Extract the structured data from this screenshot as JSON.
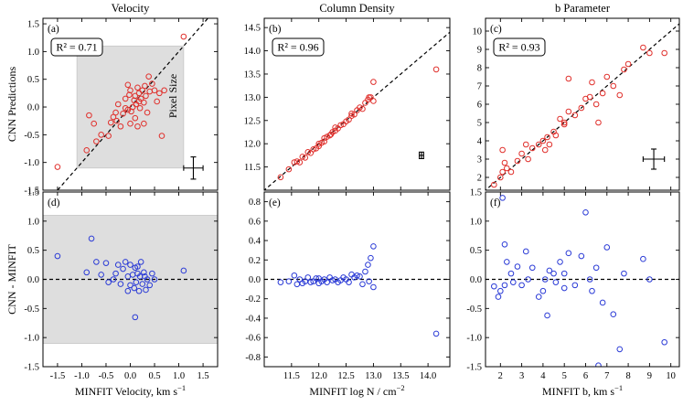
{
  "chart_data": [
    {
      "id": "a",
      "row": 0,
      "col": 0,
      "type": "scatter",
      "title": "Velocity",
      "panel_label": "(a)",
      "ylabel": "CNN Predictions",
      "xlabel": "",
      "xlim": [
        -1.8,
        1.8
      ],
      "ylim": [
        -1.5,
        1.6
      ],
      "xticks": [
        -1.5,
        -1.0,
        -0.5,
        0.0,
        0.5,
        1.0,
        1.5
      ],
      "yticks": [
        -1.5,
        -1.0,
        -0.5,
        0.0,
        0.5,
        1.0,
        1.5
      ],
      "ytick_labels": [
        "-1.5",
        "-1.0",
        "-0.5",
        "0.0",
        "0.5",
        "1.0",
        "1.5"
      ],
      "show_xticklabels": false,
      "r2_text": "R² = 0.71",
      "one_to_one": true,
      "zero_line": false,
      "shaded": {
        "x": [
          -1.1,
          1.1
        ],
        "y": [
          -1.1,
          1.1
        ]
      },
      "shaded_label": "Pixel Size",
      "errbar": {
        "x": 1.3,
        "y": -1.1,
        "xerr": 0.2,
        "yerr": 0.2
      },
      "color": "#e0302c",
      "points": [
        [
          -1.5,
          -1.08
        ],
        [
          -0.9,
          -0.78
        ],
        [
          -0.85,
          -0.15
        ],
        [
          -0.7,
          -0.62
        ],
        [
          -0.6,
          -0.5
        ],
        [
          -0.75,
          -0.3
        ],
        [
          -0.45,
          -0.52
        ],
        [
          -0.4,
          -0.28
        ],
        [
          -0.35,
          -0.18
        ],
        [
          -0.3,
          -0.1
        ],
        [
          -0.28,
          -0.25
        ],
        [
          -0.25,
          0.05
        ],
        [
          -0.2,
          -0.35
        ],
        [
          -0.15,
          -0.12
        ],
        [
          -0.1,
          -0.02
        ],
        [
          -0.1,
          0.15
        ],
        [
          -0.05,
          -0.05
        ],
        [
          -0.02,
          0.22
        ],
        [
          0.0,
          0.3
        ],
        [
          0.02,
          -0.08
        ],
        [
          0.05,
          0.0
        ],
        [
          0.08,
          0.12
        ],
        [
          0.1,
          0.2
        ],
        [
          0.1,
          -0.2
        ],
        [
          0.12,
          0.05
        ],
        [
          0.15,
          0.35
        ],
        [
          0.18,
          0.25
        ],
        [
          0.2,
          -0.02
        ],
        [
          0.22,
          0.15
        ],
        [
          0.25,
          0.3
        ],
        [
          0.28,
          0.08
        ],
        [
          0.3,
          0.38
        ],
        [
          0.32,
          0.2
        ],
        [
          0.35,
          -0.1
        ],
        [
          0.38,
          0.55
        ],
        [
          0.4,
          0.28
        ],
        [
          0.45,
          0.42
        ],
        [
          0.5,
          0.3
        ],
        [
          0.55,
          0.1
        ],
        [
          0.6,
          0.25
        ],
        [
          0.65,
          -0.52
        ],
        [
          0.7,
          0.3
        ],
        [
          0.28,
          -0.3
        ],
        [
          -0.05,
          0.4
        ],
        [
          0.15,
          -0.35
        ],
        [
          1.1,
          1.27
        ],
        [
          0.18,
          0.1
        ],
        [
          0.0,
          -0.3
        ]
      ]
    },
    {
      "id": "b",
      "row": 0,
      "col": 1,
      "type": "scatter",
      "title": "Column Density",
      "panel_label": "(b)",
      "ylabel": "",
      "xlabel": "",
      "xlim": [
        11.0,
        14.4
      ],
      "ylim": [
        11.0,
        14.7
      ],
      "xticks": [
        11.5,
        12.0,
        12.5,
        13.0,
        13.5,
        14.0
      ],
      "yticks": [
        11.5,
        12.0,
        12.5,
        13.0,
        13.5,
        14.0,
        14.5
      ],
      "ytick_labels": [
        "11.5",
        "12.0",
        "12.5",
        "13.0",
        "13.5",
        "14.0",
        "14.5"
      ],
      "show_xticklabels": false,
      "r2_text": "R² = 0.96",
      "one_to_one": true,
      "zero_line": false,
      "errbar": {
        "x": 13.88,
        "y": 11.75,
        "xerr": 0.04,
        "yerr": 0.07
      },
      "color": "#e0302c",
      "points": [
        [
          11.3,
          11.28
        ],
        [
          11.45,
          11.45
        ],
        [
          11.55,
          11.6
        ],
        [
          11.6,
          11.62
        ],
        [
          11.7,
          11.72
        ],
        [
          11.75,
          11.7
        ],
        [
          11.8,
          11.82
        ],
        [
          11.85,
          11.8
        ],
        [
          11.9,
          11.88
        ],
        [
          11.95,
          11.9
        ],
        [
          12.0,
          12.0
        ],
        [
          12.05,
          12.02
        ],
        [
          12.1,
          12.05
        ],
        [
          12.1,
          12.12
        ],
        [
          12.15,
          12.15
        ],
        [
          12.2,
          12.18
        ],
        [
          12.22,
          12.2
        ],
        [
          12.25,
          12.25
        ],
        [
          12.3,
          12.28
        ],
        [
          12.35,
          12.33
        ],
        [
          12.4,
          12.4
        ],
        [
          12.45,
          12.42
        ],
        [
          12.5,
          12.48
        ],
        [
          12.55,
          12.52
        ],
        [
          12.6,
          12.6
        ],
        [
          12.65,
          12.63
        ],
        [
          12.7,
          12.72
        ],
        [
          12.75,
          12.78
        ],
        [
          12.8,
          12.75
        ],
        [
          12.85,
          12.88
        ],
        [
          12.9,
          12.95
        ],
        [
          12.95,
          13.0
        ],
        [
          13.0,
          12.92
        ],
        [
          13.0,
          13.33
        ],
        [
          12.92,
          13.0
        ],
        [
          14.15,
          13.6
        ],
        [
          11.65,
          11.6
        ],
        [
          12.0,
          11.95
        ],
        [
          12.3,
          12.35
        ],
        [
          12.6,
          12.65
        ]
      ]
    },
    {
      "id": "c",
      "row": 0,
      "col": 2,
      "type": "scatter",
      "title": "b Parameter",
      "panel_label": "(c)",
      "ylabel": "",
      "xlabel": "",
      "xlim": [
        1.3,
        10.4
      ],
      "ylim": [
        1.3,
        10.7
      ],
      "xticks": [
        2,
        3,
        4,
        5,
        6,
        7,
        8,
        9,
        10
      ],
      "yticks": [
        2,
        3,
        4,
        5,
        6,
        7,
        8,
        9,
        10
      ],
      "ytick_labels": [
        "2",
        "3",
        "4",
        "5",
        "6",
        "7",
        "8",
        "9",
        "10"
      ],
      "show_xticklabels": false,
      "r2_text": "R² = 0.93",
      "one_to_one": true,
      "zero_line": false,
      "errbar": {
        "x": 9.2,
        "y": 3.0,
        "xerr": 0.5,
        "yerr": 0.55
      },
      "color": "#e0302c",
      "points": [
        [
          1.7,
          1.6
        ],
        [
          2.0,
          2.0
        ],
        [
          2.1,
          2.3
        ],
        [
          2.2,
          2.8
        ],
        [
          2.1,
          3.5
        ],
        [
          2.3,
          2.5
        ],
        [
          2.5,
          2.3
        ],
        [
          2.8,
          2.9
        ],
        [
          3.0,
          3.3
        ],
        [
          3.2,
          3.8
        ],
        [
          3.5,
          3.6
        ],
        [
          3.8,
          3.8
        ],
        [
          4.0,
          4.0
        ],
        [
          4.2,
          4.2
        ],
        [
          4.3,
          3.8
        ],
        [
          4.5,
          4.5
        ],
        [
          4.6,
          4.3
        ],
        [
          4.8,
          5.2
        ],
        [
          5.0,
          5.0
        ],
        [
          5.2,
          5.6
        ],
        [
          5.2,
          7.4
        ],
        [
          5.5,
          5.4
        ],
        [
          5.8,
          5.8
        ],
        [
          6.0,
          6.3
        ],
        [
          6.2,
          6.4
        ],
        [
          6.3,
          7.2
        ],
        [
          6.5,
          6.0
        ],
        [
          6.6,
          5.0
        ],
        [
          6.8,
          6.6
        ],
        [
          7.0,
          7.5
        ],
        [
          7.3,
          7.0
        ],
        [
          7.6,
          6.5
        ],
        [
          7.8,
          7.9
        ],
        [
          8.0,
          8.2
        ],
        [
          8.7,
          9.1
        ],
        [
          9.0,
          8.8
        ],
        [
          9.7,
          8.8
        ],
        [
          4.1,
          3.5
        ],
        [
          5.0,
          4.9
        ],
        [
          3.3,
          3.0
        ]
      ]
    },
    {
      "id": "d",
      "row": 1,
      "col": 0,
      "type": "scatter",
      "title": "",
      "panel_label": "(d)",
      "ylabel": "CNN - MINFIT",
      "xlabel": "MINFIT Velocity, km s",
      "xlabel_sup": "−1",
      "xlim": [
        -1.8,
        1.8
      ],
      "ylim": [
        -1.5,
        1.5
      ],
      "xticks": [
        -1.5,
        -1.0,
        -0.5,
        0.0,
        0.5,
        1.0,
        1.5
      ],
      "xtick_labels": [
        "-1.5",
        "-1.0",
        "-0.5",
        "0.0",
        "0.5",
        "1.0",
        "1.5"
      ],
      "yticks": [
        -1.5,
        -1.0,
        -0.5,
        0.0,
        0.5,
        1.0,
        1.5
      ],
      "ytick_labels": [
        "-1.5",
        "-1.0",
        "-0.5",
        "0.0",
        "0.5",
        "1.0",
        "1.5"
      ],
      "show_xticklabels": true,
      "r2_text": "",
      "one_to_one": false,
      "zero_line": true,
      "shaded": {
        "x": [
          -1.8,
          1.8
        ],
        "y": [
          -1.1,
          1.1
        ]
      },
      "color": "#2b3bd6",
      "points": [
        [
          -1.5,
          0.4
        ],
        [
          -0.9,
          0.12
        ],
        [
          -0.8,
          0.7
        ],
        [
          -0.7,
          0.3
        ],
        [
          -0.6,
          0.08
        ],
        [
          -0.5,
          0.28
        ],
        [
          -0.45,
          -0.05
        ],
        [
          -0.3,
          0.1
        ],
        [
          -0.25,
          0.25
        ],
        [
          -0.2,
          -0.08
        ],
        [
          -0.15,
          0.18
        ],
        [
          -0.1,
          0.3
        ],
        [
          -0.05,
          0.05
        ],
        [
          0.0,
          -0.1
        ],
        [
          0.0,
          0.25
        ],
        [
          0.05,
          0.08
        ],
        [
          0.08,
          -0.15
        ],
        [
          0.1,
          0.2
        ],
        [
          0.12,
          -0.05
        ],
        [
          0.15,
          0.1
        ],
        [
          0.18,
          -0.2
        ],
        [
          0.2,
          0.05
        ],
        [
          0.22,
          0.3
        ],
        [
          0.25,
          -0.08
        ],
        [
          0.28,
          0.12
        ],
        [
          0.3,
          0.05
        ],
        [
          0.32,
          -0.18
        ],
        [
          0.1,
          -0.65
        ],
        [
          0.35,
          0.0
        ],
        [
          0.4,
          -0.1
        ],
        [
          0.45,
          0.1
        ],
        [
          0.5,
          0.0
        ],
        [
          1.1,
          0.15
        ],
        [
          -0.35,
          0.0
        ],
        [
          0.15,
          0.22
        ],
        [
          -0.05,
          -0.2
        ]
      ]
    },
    {
      "id": "e",
      "row": 1,
      "col": 1,
      "type": "scatter",
      "title": "",
      "panel_label": "(e)",
      "ylabel": "",
      "xlabel": "MINFIT log N / cm",
      "xlabel_sup": "−2",
      "xlim": [
        11.0,
        14.4
      ],
      "ylim": [
        -0.9,
        0.9
      ],
      "xticks": [
        11.5,
        12.0,
        12.5,
        13.0,
        13.5,
        14.0
      ],
      "xtick_labels": [
        "11.5",
        "12.0",
        "12.5",
        "13.0",
        "13.5",
        "14.0"
      ],
      "yticks": [
        -0.8,
        -0.6,
        -0.4,
        -0.2,
        0.0,
        0.2,
        0.4,
        0.6,
        0.8
      ],
      "ytick_labels": [
        "-0.8",
        "-0.6",
        "-0.4",
        "-0.2",
        "0.0",
        "0.2",
        "0.4",
        "0.6",
        "0.8"
      ],
      "show_xticklabels": true,
      "r2_text": "",
      "one_to_one": false,
      "zero_line": true,
      "color": "#2b3bd6",
      "points": [
        [
          11.3,
          -0.03
        ],
        [
          11.45,
          -0.02
        ],
        [
          11.55,
          0.04
        ],
        [
          11.6,
          -0.05
        ],
        [
          11.65,
          0.0
        ],
        [
          11.7,
          -0.04
        ],
        [
          11.8,
          0.02
        ],
        [
          11.85,
          -0.03
        ],
        [
          11.9,
          -0.02
        ],
        [
          11.95,
          0.01
        ],
        [
          12.0,
          -0.04
        ],
        [
          12.05,
          -0.02
        ],
        [
          12.1,
          0.0
        ],
        [
          12.15,
          -0.03
        ],
        [
          12.2,
          0.02
        ],
        [
          12.25,
          -0.01
        ],
        [
          12.3,
          0.0
        ],
        [
          12.35,
          -0.03
        ],
        [
          12.4,
          -0.01
        ],
        [
          12.45,
          0.02
        ],
        [
          12.5,
          0.0
        ],
        [
          12.55,
          -0.03
        ],
        [
          12.6,
          0.05
        ],
        [
          12.65,
          0.02
        ],
        [
          12.7,
          0.04
        ],
        [
          12.75,
          0.03
        ],
        [
          12.8,
          -0.05
        ],
        [
          12.85,
          0.08
        ],
        [
          12.9,
          0.15
        ],
        [
          12.95,
          0.22
        ],
        [
          13.0,
          0.34
        ],
        [
          13.0,
          -0.08
        ],
        [
          12.92,
          -0.02
        ],
        [
          14.15,
          -0.56
        ],
        [
          12.0,
          0.01
        ],
        [
          11.75,
          -0.02
        ]
      ]
    },
    {
      "id": "f",
      "row": 1,
      "col": 2,
      "type": "scatter",
      "title": "",
      "panel_label": "(f)",
      "ylabel": "",
      "xlabel": "MINFIT b, km s",
      "xlabel_sup": "−1",
      "xlim": [
        1.3,
        10.4
      ],
      "ylim": [
        -1.5,
        1.5
      ],
      "xticks": [
        2,
        3,
        4,
        5,
        6,
        7,
        8,
        9,
        10
      ],
      "xtick_labels": [
        "2",
        "3",
        "4",
        "5",
        "6",
        "7",
        "8",
        "9",
        "10"
      ],
      "yticks": [
        -1.5,
        -1.0,
        -0.5,
        0.0,
        0.5,
        1.0,
        1.5
      ],
      "ytick_labels": [
        "-1.5",
        "-1.0",
        "-0.5",
        "0.0",
        "0.5",
        "1.0",
        "1.5"
      ],
      "show_xticklabels": true,
      "r2_text": "",
      "one_to_one": false,
      "zero_line": true,
      "color": "#2b3bd6",
      "points": [
        [
          1.7,
          -0.12
        ],
        [
          1.9,
          -0.3
        ],
        [
          2.0,
          -0.2
        ],
        [
          2.1,
          1.4
        ],
        [
          2.2,
          0.6
        ],
        [
          2.2,
          -0.1
        ],
        [
          2.3,
          0.3
        ],
        [
          2.5,
          0.1
        ],
        [
          2.6,
          -0.05
        ],
        [
          2.8,
          0.22
        ],
        [
          3.0,
          -0.1
        ],
        [
          3.2,
          0.48
        ],
        [
          3.3,
          0.0
        ],
        [
          3.5,
          0.2
        ],
        [
          3.8,
          -0.3
        ],
        [
          4.0,
          -0.2
        ],
        [
          4.2,
          -0.62
        ],
        [
          4.3,
          0.15
        ],
        [
          4.5,
          0.1
        ],
        [
          4.6,
          -0.05
        ],
        [
          4.8,
          0.3
        ],
        [
          5.0,
          0.1
        ],
        [
          5.2,
          0.45
        ],
        [
          5.5,
          -0.1
        ],
        [
          5.8,
          0.4
        ],
        [
          6.0,
          1.15
        ],
        [
          6.2,
          0.0
        ],
        [
          6.3,
          -0.2
        ],
        [
          6.6,
          -1.48
        ],
        [
          6.8,
          -0.4
        ],
        [
          7.0,
          0.55
        ],
        [
          7.3,
          -0.6
        ],
        [
          7.6,
          -1.2
        ],
        [
          7.8,
          0.1
        ],
        [
          8.7,
          0.35
        ],
        [
          9.0,
          0.0
        ],
        [
          9.7,
          -1.08
        ],
        [
          4.1,
          0.0
        ],
        [
          5.0,
          -0.15
        ],
        [
          6.5,
          0.2
        ]
      ]
    }
  ]
}
